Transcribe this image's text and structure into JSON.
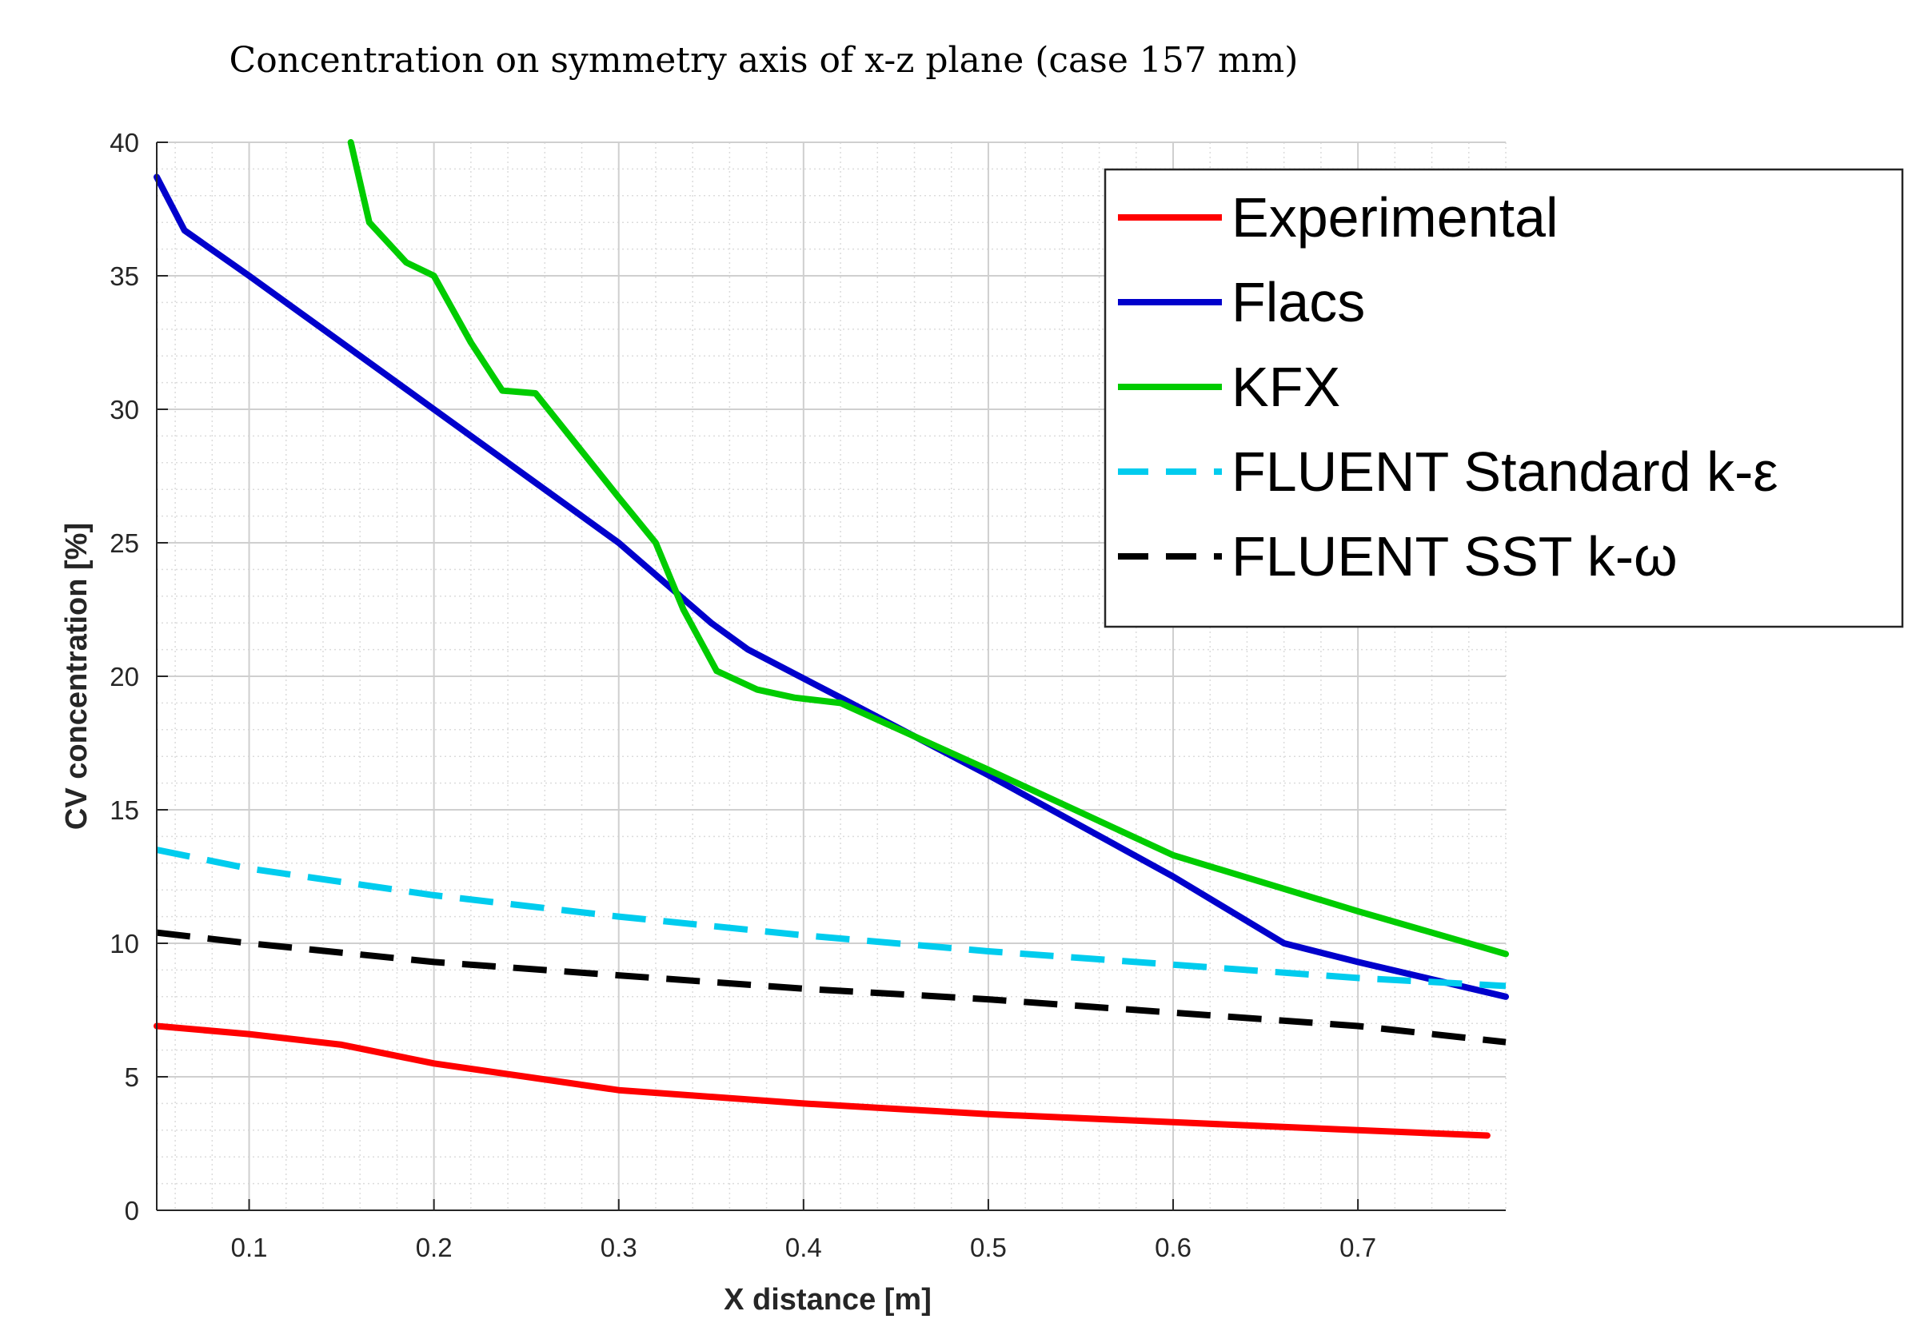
{
  "chart_data": {
    "type": "line",
    "title": "Concentration on symmetry axis of x-z plane (case 157 mm)",
    "xlabel": "X distance [m]",
    "ylabel": "CV concentration [%]",
    "xlim": [
      0.05,
      0.78
    ],
    "ylim": [
      0,
      40
    ],
    "xticks": [
      0.1,
      0.2,
      0.3,
      0.4,
      0.5,
      0.6,
      0.7
    ],
    "xtick_labels": [
      "0.1",
      "0.2",
      "0.3",
      "0.4",
      "0.5",
      "0.6",
      "0.7"
    ],
    "yticks": [
      0,
      5,
      10,
      15,
      20,
      25,
      30,
      35,
      40
    ],
    "ytick_labels": [
      "0",
      "5",
      "10",
      "15",
      "20",
      "25",
      "30",
      "35",
      "40"
    ],
    "grid": true,
    "minor_grid": true,
    "legend_position": "top-right",
    "series": [
      {
        "name": "Experimental",
        "color": "#ff0000",
        "style": "solid",
        "x": [
          0.05,
          0.1,
          0.15,
          0.2,
          0.25,
          0.3,
          0.4,
          0.5,
          0.6,
          0.7,
          0.77
        ],
        "y": [
          6.9,
          6.6,
          6.2,
          5.5,
          5.0,
          4.5,
          4.0,
          3.6,
          3.3,
          3.0,
          2.8
        ]
      },
      {
        "name": "Flacs",
        "color": "#0000cc",
        "style": "solid",
        "x": [
          0.05,
          0.065,
          0.1,
          0.2,
          0.3,
          0.35,
          0.37,
          0.42,
          0.5,
          0.6,
          0.66,
          0.7,
          0.78
        ],
        "y": [
          38.7,
          36.7,
          35.0,
          30.0,
          25.0,
          22.0,
          21.0,
          19.2,
          16.3,
          12.5,
          10.0,
          9.3,
          8.0
        ]
      },
      {
        "name": "KFX",
        "color": "#00cc00",
        "style": "solid",
        "x": [
          0.155,
          0.165,
          0.185,
          0.2,
          0.22,
          0.237,
          0.255,
          0.3,
          0.32,
          0.335,
          0.353,
          0.375,
          0.395,
          0.42,
          0.5,
          0.6,
          0.7,
          0.78
        ],
        "y": [
          40.0,
          37.0,
          35.5,
          35.0,
          32.5,
          30.7,
          30.6,
          26.7,
          25.0,
          22.5,
          20.2,
          19.5,
          19.2,
          19.0,
          16.5,
          13.3,
          11.2,
          9.6
        ]
      },
      {
        "name": "FLUENT Standard k-ε",
        "color": "#00ccee",
        "style": "dashed",
        "x": [
          0.05,
          0.1,
          0.2,
          0.3,
          0.4,
          0.5,
          0.6,
          0.7,
          0.78
        ],
        "y": [
          13.5,
          12.8,
          11.8,
          11.0,
          10.3,
          9.7,
          9.2,
          8.7,
          8.4
        ]
      },
      {
        "name": "FLUENT SST k-ω",
        "color": "#000000",
        "style": "dashed",
        "x": [
          0.05,
          0.1,
          0.2,
          0.3,
          0.4,
          0.5,
          0.6,
          0.7,
          0.78
        ],
        "y": [
          10.4,
          10.0,
          9.3,
          8.8,
          8.3,
          7.9,
          7.4,
          6.9,
          6.3
        ]
      }
    ]
  }
}
